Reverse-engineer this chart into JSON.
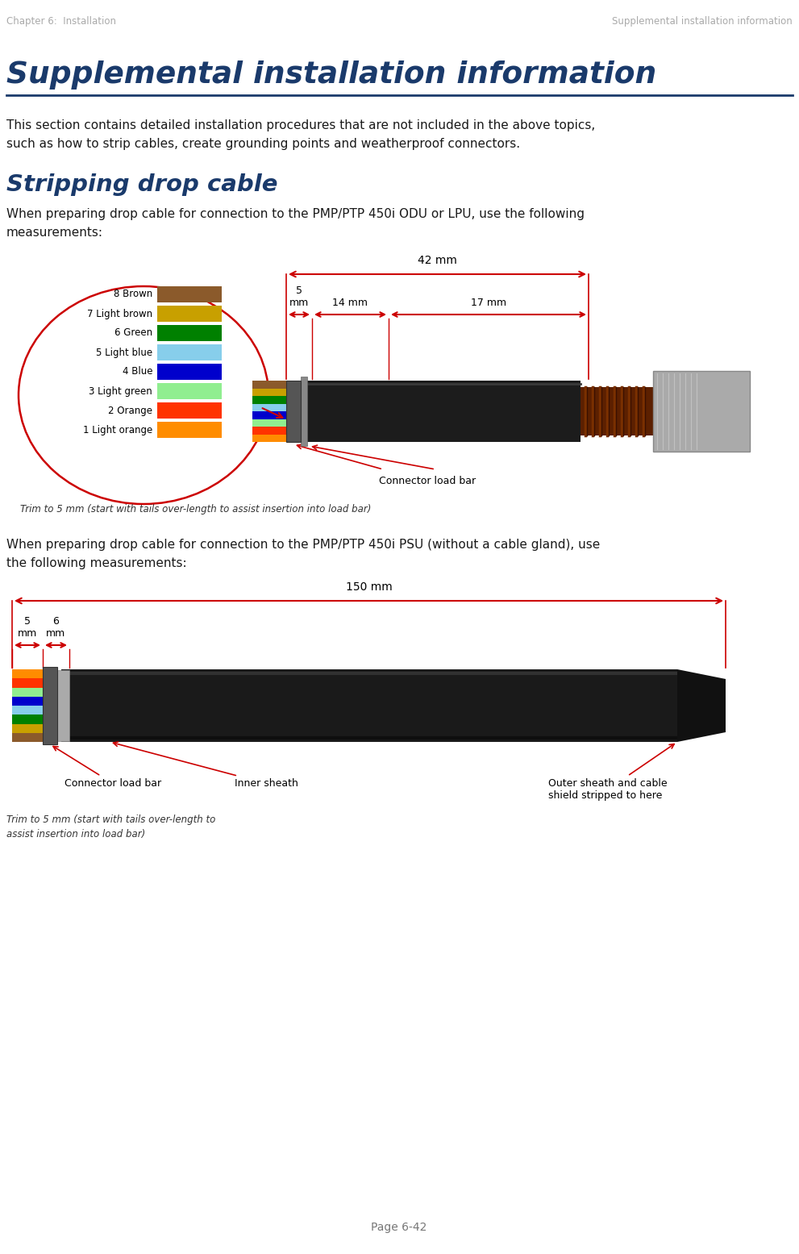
{
  "header_left": "Chapter 6:  Installation",
  "header_right": "Supplemental installation information",
  "main_title": "Supplemental installation information",
  "body_text1": "This section contains detailed installation procedures that are not included in the above topics,\nsuch as how to strip cables, create grounding points and weatherproof connectors.",
  "section_title": "Stripping drop cable",
  "para1": "When preparing drop cable for connection to the PMP/PTP 450i ODU or LPU, use the following\nmeasurements:",
  "para2": "When preparing drop cable for connection to the PMP/PTP 450i PSU (without a cable gland), use\nthe following measurements:",
  "footer": "Page 6-42",
  "title_color": "#1a3a6b",
  "header_color": "#aaaaaa",
  "line_color": "#1a3a6b",
  "body_color": "#1a1a1a",
  "bg_color": "#ffffff",
  "red": "#cc0000",
  "cable_colors_top_to_bottom": [
    "#8B5A2B",
    "#C8A000",
    "#008000",
    "#87CEEB",
    "#0000CC",
    "#90EE90",
    "#FF3300",
    "#FF8C00"
  ],
  "cable_labels": [
    "8 Brown",
    "7 Light brown",
    "6 Green",
    "5 Light blue",
    "4 Blue",
    "3 Light green",
    "2 Orange",
    "1 Light orange"
  ],
  "dim_42mm": "42 mm",
  "dim_5mm": "5\nmm",
  "dim_14mm": "14 mm",
  "dim_17mm": "17 mm",
  "dim_150mm": "150 mm",
  "dim_5mm2": "5\nmm",
  "dim_6mm": "6\nmm",
  "connector_label": "Connector load bar",
  "inner_sheath": "Inner sheath",
  "outer_sheath": "Outer sheath and cable\nshield stripped to here",
  "trim_note1": "Trim to 5 mm (start with tails over-length to assist insertion into load bar)",
  "trim_note2": "Trim to 5 mm (start with tails over-length to\nassist insertion into load bar)"
}
